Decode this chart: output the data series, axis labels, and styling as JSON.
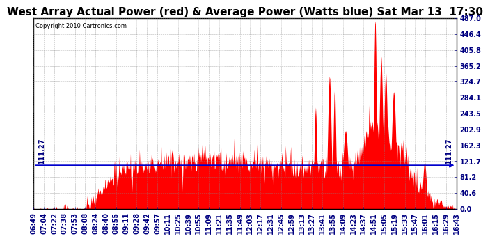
{
  "title": "West Array Actual Power (red) & Average Power (Watts blue) Sat Mar 13  17:30",
  "copyright": "Copyright 2010 Cartronics.com",
  "average_power": 111.27,
  "y_ticks": [
    0.0,
    40.6,
    81.2,
    121.7,
    162.3,
    202.9,
    243.5,
    284.1,
    324.7,
    365.2,
    405.8,
    446.4,
    487.0
  ],
  "ylim": [
    0.0,
    487.0
  ],
  "bar_color": "#FF0000",
  "line_color": "#0000CC",
  "background_color": "#FFFFFF",
  "grid_color": "#888888",
  "x_labels": [
    "06:49",
    "07:04",
    "07:22",
    "07:38",
    "07:53",
    "08:08",
    "08:24",
    "08:40",
    "08:55",
    "09:11",
    "09:28",
    "09:42",
    "09:57",
    "10:11",
    "10:25",
    "10:39",
    "10:55",
    "11:09",
    "11:21",
    "11:35",
    "11:49",
    "12:03",
    "12:17",
    "12:31",
    "12:45",
    "12:59",
    "13:13",
    "13:27",
    "13:41",
    "13:55",
    "14:09",
    "14:23",
    "14:37",
    "14:51",
    "15:05",
    "15:19",
    "15:33",
    "15:47",
    "16:01",
    "16:15",
    "16:29",
    "16:43"
  ],
  "title_fontsize": 11,
  "tick_fontsize": 7,
  "avg_label_fontsize": 7
}
